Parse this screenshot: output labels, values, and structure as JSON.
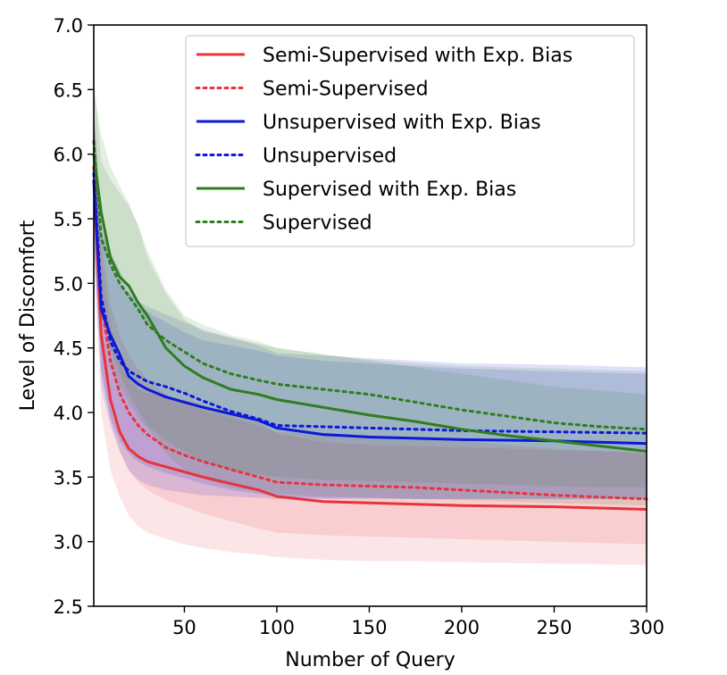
{
  "chart_data": {
    "type": "line",
    "title": "",
    "xlabel": "Number of Query",
    "ylabel": "Level of Discomfort",
    "xlim": [
      1,
      300
    ],
    "ylim": [
      2.5,
      7.0
    ],
    "xticks": [
      50,
      100,
      150,
      200,
      250,
      300
    ],
    "yticks": [
      2.5,
      3.0,
      3.5,
      4.0,
      4.5,
      5.0,
      5.5,
      6.0,
      6.5,
      7.0
    ],
    "ytick_labels": [
      "2.5",
      "3.0",
      "3.5",
      "4.0",
      "4.5",
      "5.0",
      "5.5",
      "6.0",
      "6.5",
      "7.0"
    ],
    "grid": false,
    "legend_position": "top-right",
    "series": [
      {
        "name": "Semi-Supervised with Exp. Bias",
        "color": "#e8333a",
        "style": "solid",
        "x": [
          1,
          5,
          10,
          15,
          20,
          25,
          30,
          40,
          50,
          60,
          75,
          90,
          100,
          125,
          150,
          175,
          200,
          250,
          300
        ],
        "y": [
          5.8,
          4.6,
          4.1,
          3.85,
          3.72,
          3.66,
          3.62,
          3.58,
          3.54,
          3.5,
          3.45,
          3.4,
          3.35,
          3.31,
          3.3,
          3.29,
          3.28,
          3.27,
          3.25
        ],
        "band_lower": [
          5.3,
          4.0,
          3.55,
          3.35,
          3.2,
          3.12,
          3.07,
          3.02,
          2.98,
          2.95,
          2.92,
          2.9,
          2.88,
          2.86,
          2.85,
          2.85,
          2.84,
          2.83,
          2.82
        ],
        "band_upper": [
          6.3,
          5.2,
          4.7,
          4.4,
          4.25,
          4.18,
          4.15,
          4.12,
          4.1,
          4.06,
          4.0,
          3.93,
          3.84,
          3.77,
          3.75,
          3.74,
          3.73,
          3.71,
          3.7
        ]
      },
      {
        "name": "Semi-Supervised",
        "color": "#e8333a",
        "style": "dotted",
        "x": [
          1,
          5,
          10,
          15,
          20,
          25,
          30,
          40,
          50,
          60,
          75,
          90,
          100,
          125,
          150,
          175,
          200,
          250,
          300
        ],
        "y": [
          5.9,
          4.85,
          4.4,
          4.15,
          4.0,
          3.9,
          3.83,
          3.73,
          3.67,
          3.62,
          3.56,
          3.5,
          3.46,
          3.44,
          3.43,
          3.42,
          3.4,
          3.36,
          3.33
        ],
        "band_lower": [
          5.4,
          4.35,
          3.95,
          3.7,
          3.55,
          3.46,
          3.4,
          3.32,
          3.27,
          3.22,
          3.16,
          3.1,
          3.07,
          3.05,
          3.04,
          3.03,
          3.02,
          3.0,
          2.98
        ],
        "band_upper": [
          6.4,
          5.35,
          4.85,
          4.6,
          4.45,
          4.34,
          4.26,
          4.14,
          4.07,
          4.02,
          3.96,
          3.9,
          3.85,
          3.83,
          3.82,
          3.81,
          3.78,
          3.72,
          3.68
        ]
      },
      {
        "name": "Unsupervised with Exp. Bias",
        "color": "#0b19d9",
        "style": "solid",
        "x": [
          1,
          5,
          10,
          15,
          20,
          25,
          30,
          40,
          50,
          60,
          75,
          90,
          100,
          125,
          150,
          175,
          200,
          250,
          300
        ],
        "y": [
          5.8,
          4.8,
          4.6,
          4.45,
          4.28,
          4.22,
          4.18,
          4.12,
          4.08,
          4.04,
          3.99,
          3.94,
          3.88,
          3.83,
          3.81,
          3.8,
          3.79,
          3.78,
          3.76
        ],
        "band_lower": [
          5.3,
          4.2,
          3.9,
          3.7,
          3.55,
          3.48,
          3.44,
          3.4,
          3.38,
          3.36,
          3.35,
          3.34,
          3.33,
          3.33,
          3.33,
          3.33,
          3.33,
          3.33,
          3.33
        ],
        "band_upper": [
          6.3,
          5.4,
          5.25,
          5.1,
          4.95,
          4.85,
          4.78,
          4.7,
          4.62,
          4.56,
          4.52,
          4.48,
          4.44,
          4.4,
          4.38,
          4.36,
          4.34,
          4.32,
          4.3
        ]
      },
      {
        "name": "Unsupervised",
        "color": "#0b19d9",
        "style": "dotted",
        "x": [
          1,
          5,
          10,
          15,
          20,
          25,
          30,
          40,
          50,
          60,
          75,
          90,
          100,
          125,
          150,
          175,
          200,
          250,
          300
        ],
        "y": [
          5.85,
          4.9,
          4.55,
          4.4,
          4.32,
          4.28,
          4.24,
          4.2,
          4.15,
          4.09,
          4.01,
          3.95,
          3.9,
          3.89,
          3.88,
          3.87,
          3.86,
          3.85,
          3.84
        ],
        "band_lower": [
          5.35,
          4.3,
          3.95,
          3.78,
          3.68,
          3.62,
          3.58,
          3.53,
          3.49,
          3.45,
          3.4,
          3.37,
          3.35,
          3.34,
          3.34,
          3.33,
          3.33,
          3.33,
          3.33
        ],
        "band_upper": [
          6.35,
          5.5,
          5.15,
          5.0,
          4.92,
          4.86,
          4.82,
          4.76,
          4.7,
          4.64,
          4.58,
          4.52,
          4.46,
          4.44,
          4.42,
          4.4,
          4.38,
          4.37,
          4.35
        ]
      },
      {
        "name": "Supervised with Exp. Bias",
        "color": "#2f7d20",
        "style": "solid",
        "x": [
          1,
          5,
          10,
          15,
          20,
          25,
          30,
          40,
          50,
          60,
          75,
          90,
          100,
          125,
          150,
          175,
          200,
          225,
          250,
          275,
          300
        ],
        "y": [
          6.0,
          5.55,
          5.2,
          5.05,
          4.98,
          4.85,
          4.75,
          4.5,
          4.36,
          4.27,
          4.18,
          4.14,
          4.1,
          4.04,
          3.98,
          3.93,
          3.87,
          3.82,
          3.78,
          3.74,
          3.7
        ],
        "band_lower": [
          5.5,
          4.9,
          4.4,
          4.2,
          4.08,
          3.96,
          3.88,
          3.68,
          3.56,
          3.49,
          3.42,
          3.39,
          3.37,
          3.35,
          3.34,
          3.33,
          3.32,
          3.31,
          3.3,
          3.29,
          3.28
        ],
        "band_upper": [
          6.5,
          6.15,
          5.9,
          5.75,
          5.62,
          5.45,
          5.25,
          4.95,
          4.75,
          4.68,
          4.6,
          4.55,
          4.5,
          4.45,
          4.4,
          4.35,
          4.3,
          4.25,
          4.2,
          4.17,
          4.14
        ]
      },
      {
        "name": "Supervised",
        "color": "#2f7d20",
        "style": "dotted",
        "x": [
          1,
          5,
          10,
          15,
          20,
          25,
          30,
          40,
          50,
          60,
          75,
          90,
          100,
          125,
          150,
          175,
          200,
          225,
          250,
          275,
          300
        ],
        "y": [
          6.1,
          5.35,
          5.15,
          5.0,
          4.9,
          4.8,
          4.68,
          4.56,
          4.47,
          4.38,
          4.3,
          4.25,
          4.22,
          4.18,
          4.14,
          4.08,
          4.02,
          3.97,
          3.92,
          3.89,
          3.87
        ],
        "band_lower": [
          5.6,
          4.75,
          4.5,
          4.3,
          4.15,
          4.02,
          3.9,
          3.78,
          3.7,
          3.62,
          3.55,
          3.52,
          3.5,
          3.48,
          3.47,
          3.46,
          3.45,
          3.44,
          3.43,
          3.42,
          3.42
        ],
        "band_upper": [
          6.6,
          5.95,
          5.8,
          5.7,
          5.6,
          5.45,
          5.2,
          4.92,
          4.72,
          4.63,
          4.58,
          4.53,
          4.5,
          4.45,
          4.41,
          4.38,
          4.36,
          4.35,
          4.34,
          4.33,
          4.32
        ]
      }
    ]
  }
}
